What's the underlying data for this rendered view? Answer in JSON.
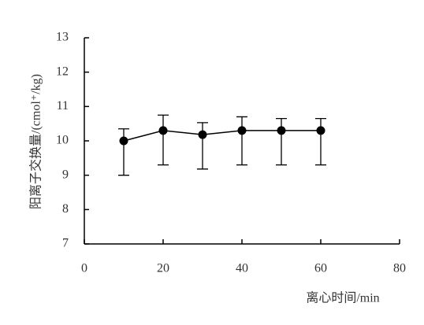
{
  "chart_data": {
    "type": "line",
    "x_label": "离心时间/min",
    "y_label": "阳离子交换量/(cmol⁺/kg)",
    "x": [
      10,
      20,
      30,
      40,
      50,
      60
    ],
    "values": [
      10.0,
      10.3,
      10.18,
      10.3,
      10.3,
      10.3
    ],
    "error_plus": [
      0.35,
      0.45,
      0.35,
      0.4,
      0.35,
      0.35
    ],
    "error_minus": [
      1.0,
      1.0,
      1.0,
      1.0,
      1.0,
      1.0
    ],
    "color": "#000000",
    "xlim": [
      0,
      80
    ],
    "xticks": [
      0,
      20,
      40,
      60,
      80
    ],
    "ylim": [
      7,
      13
    ],
    "yticks": [
      7,
      8,
      9,
      10,
      11,
      12,
      13
    ]
  }
}
